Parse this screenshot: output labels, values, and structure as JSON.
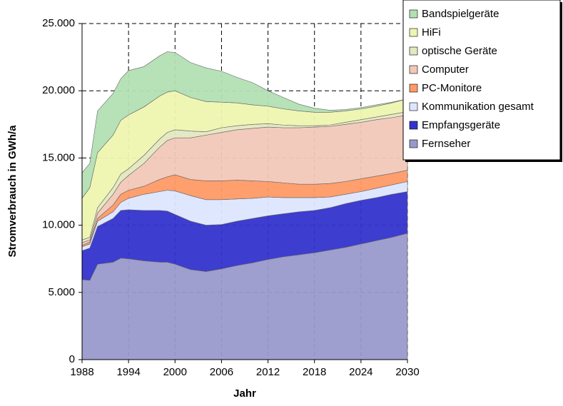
{
  "chart_data": {
    "type": "stacked_area",
    "x_label": "Jahr",
    "y_label": "Stromverbrauch in GWh/a",
    "x": [
      1988,
      1989,
      1990,
      1992,
      1993,
      1994,
      1996,
      1998,
      1999,
      2000,
      2002,
      2004,
      2006,
      2008,
      2010,
      2012,
      2014,
      2016,
      2018,
      2020,
      2022,
      2024,
      2026,
      2028,
      2030
    ],
    "xlim": [
      1988,
      2030
    ],
    "xticks": [
      1988,
      1994,
      2000,
      2006,
      2012,
      2018,
      2024,
      2030
    ],
    "ylim": [
      0,
      25000
    ],
    "yticks": [
      0,
      {
        "value": 5000,
        "label": "5.000"
      },
      {
        "value": 10000,
        "label": "10.000"
      },
      {
        "value": 15000,
        "label": "15.000"
      },
      {
        "value": 20000,
        "label": "20.000"
      },
      {
        "value": 25000,
        "label": "25.000"
      }
    ],
    "grid": true,
    "legend": "top-right",
    "series": [
      {
        "name": "Fernseher",
        "color": "#9999cc",
        "values": [
          5950,
          5900,
          7100,
          7250,
          7550,
          7500,
          7350,
          7250,
          7250,
          7100,
          6700,
          6550,
          6750,
          7000,
          7200,
          7450,
          7650,
          7800,
          7950,
          8150,
          8350,
          8600,
          8850,
          9100,
          9400
        ]
      },
      {
        "name": "Empfangsgeräte",
        "color": "#3333cc",
        "values": [
          2150,
          2400,
          2800,
          3250,
          3550,
          3650,
          3750,
          3850,
          3800,
          3700,
          3600,
          3450,
          3300,
          3300,
          3300,
          3250,
          3200,
          3200,
          3150,
          3150,
          3250,
          3250,
          3200,
          3200,
          3100
        ]
      },
      {
        "name": "Kommunikation gesamt",
        "color": "#dde6ff",
        "values": [
          300,
          300,
          400,
          500,
          600,
          850,
          1200,
          1400,
          1550,
          1750,
          1900,
          1900,
          1850,
          1650,
          1500,
          1400,
          1200,
          1050,
          950,
          800,
          700,
          650,
          700,
          700,
          750
        ]
      },
      {
        "name": "PC-Monitore",
        "color": "#ff9a66",
        "values": [
          100,
          150,
          200,
          500,
          600,
          600,
          600,
          900,
          1000,
          1200,
          1200,
          1400,
          1400,
          1400,
          1300,
          1150,
          1100,
          1000,
          1000,
          1000,
          950,
          950,
          900,
          850,
          850
        ]
      },
      {
        "name": "Computer",
        "color": "#f2c8b8",
        "values": [
          200,
          150,
          400,
          800,
          900,
          1100,
          1700,
          2400,
          2700,
          2750,
          3100,
          3400,
          3600,
          3750,
          3900,
          4050,
          4100,
          4200,
          4250,
          4250,
          4250,
          4200,
          4200,
          4150,
          4100
        ]
      },
      {
        "name": "optische Geräte",
        "color": "#e4e8c0",
        "values": [
          200,
          200,
          400,
          500,
          600,
          500,
          600,
          600,
          600,
          600,
          500,
          250,
          350,
          300,
          300,
          250,
          200,
          150,
          100,
          100,
          150,
          200,
          200,
          250,
          250
        ]
      },
      {
        "name": "HiFi",
        "color": "#eef5b0",
        "values": [
          3100,
          3700,
          4100,
          3900,
          4000,
          4000,
          3600,
          3200,
          3000,
          2900,
          2500,
          2250,
          1900,
          1700,
          1450,
          1300,
          1200,
          1100,
          1000,
          950,
          850,
          800,
          800,
          850,
          950
        ]
      },
      {
        "name": "Bandspielgeräte",
        "color": "#b3dfb3",
        "values": [
          1900,
          1800,
          3100,
          3100,
          3100,
          3300,
          3000,
          3000,
          3000,
          2850,
          2600,
          2500,
          2300,
          1900,
          1650,
          1150,
          850,
          500,
          300,
          150,
          100,
          100,
          100,
          50,
          0
        ]
      }
    ]
  }
}
